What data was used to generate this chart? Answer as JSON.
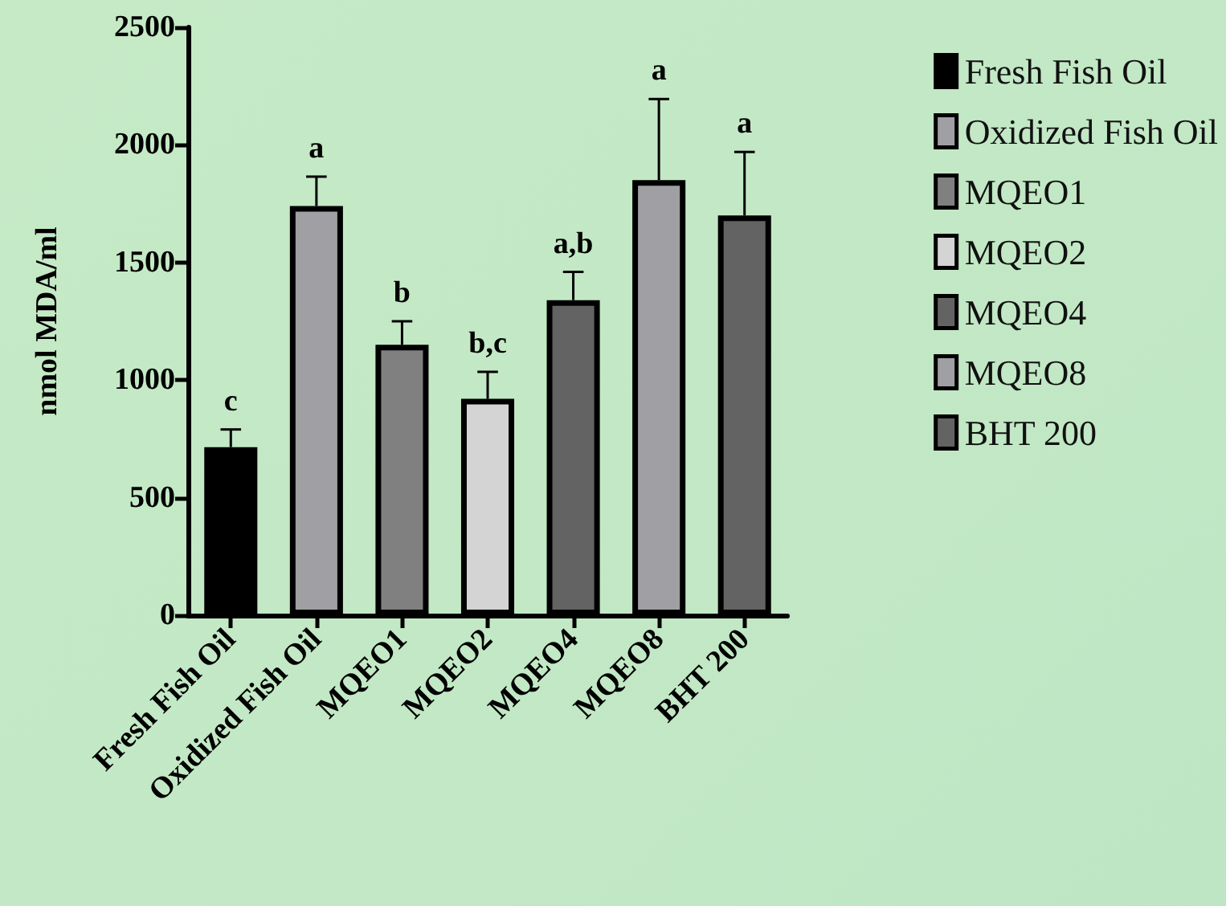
{
  "chart_data": {
    "type": "bar",
    "ylabel": "nmol MDA/ml",
    "categories": [
      "Fresh Fish Oil",
      "Oxidized Fish Oil",
      "MQEO1",
      "MQEO2",
      "MQEO4",
      "MQEO8",
      "BHT 200"
    ],
    "series": [
      {
        "name": "Fresh Fish Oil",
        "color": "#000000",
        "values": [
          715,
          null,
          null,
          null,
          null,
          null,
          null
        ],
        "errors": [
          75,
          null,
          null,
          null,
          null,
          null,
          null
        ]
      },
      {
        "name": "Oxidized Fish Oil",
        "color": "#a0a0a4",
        "values": [
          null,
          1740,
          null,
          null,
          null,
          null,
          null
        ],
        "errors": [
          null,
          125,
          null,
          null,
          null,
          null,
          null
        ]
      },
      {
        "name": "MQEO1",
        "color": "#808080",
        "values": [
          null,
          null,
          1150,
          null,
          null,
          null,
          null
        ],
        "errors": [
          null,
          null,
          100,
          null,
          null,
          null,
          null
        ]
      },
      {
        "name": "MQEO2",
        "color": "#d4d4d4",
        "values": [
          null,
          null,
          null,
          920,
          null,
          null,
          null
        ],
        "errors": [
          null,
          null,
          null,
          115,
          null,
          null,
          null
        ]
      },
      {
        "name": "MQEO4",
        "color": "#636363",
        "values": [
          null,
          null,
          null,
          null,
          1340,
          null,
          null
        ],
        "errors": [
          null,
          null,
          null,
          null,
          120,
          null,
          null
        ]
      },
      {
        "name": "MQEO8",
        "color": "#a0a0a4",
        "values": [
          null,
          null,
          null,
          null,
          null,
          1850,
          null
        ],
        "errors": [
          null,
          null,
          null,
          null,
          null,
          345,
          null
        ]
      },
      {
        "name": "BHT 200",
        "color": "#636363",
        "values": [
          null,
          null,
          null,
          null,
          null,
          null,
          1700
        ],
        "errors": [
          null,
          null,
          null,
          null,
          null,
          null,
          270
        ]
      }
    ],
    "ylim": [
      0,
      2500
    ],
    "yticks": [
      0,
      500,
      1000,
      1500,
      2000,
      2500
    ],
    "grid": false,
    "legend": "right",
    "annotations": [
      {
        "text": "c",
        "x": "Fresh Fish Oil",
        "y": 790
      },
      {
        "text": "a",
        "x": "Oxidized Fish Oil",
        "y": 1865
      },
      {
        "text": "b",
        "x": "MQEO1",
        "y": 1250
      },
      {
        "text": "b,c",
        "x": "MQEO2",
        "y": 1035
      },
      {
        "text": "a,b",
        "x": "MQEO4",
        "y": 1460
      },
      {
        "text": "a",
        "x": "MQEO8",
        "y": 2195
      },
      {
        "text": "a",
        "x": "BHT 200",
        "y": 1970
      }
    ]
  }
}
